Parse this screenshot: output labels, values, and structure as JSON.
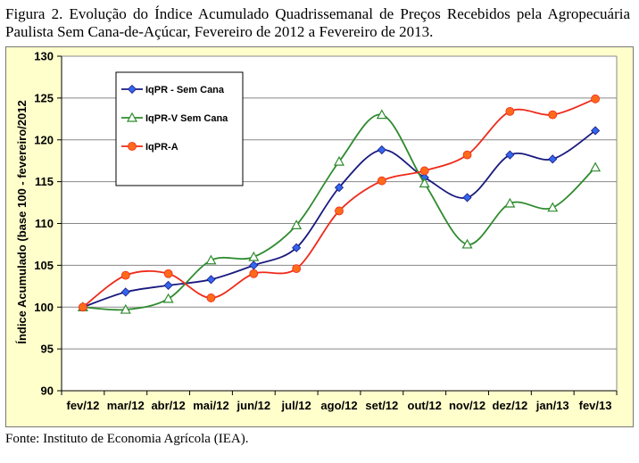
{
  "caption": "Figura 2. Evolução do Índice Acumulado Quadrissemanal de Preços Recebidos pela Agropecuária Paulista Sem Cana-de-Açúcar, Fevereiro de 2012 a Fevereiro de 2013.",
  "source": "Fonte: Instituto de Economia Agrícola (IEA).",
  "chart_data": {
    "type": "line",
    "title": "",
    "xlabel": "",
    "ylabel": "Índice Acumulado (base 100 - fevereiro/2012",
    "ylim": [
      90,
      130
    ],
    "yticks": [
      90,
      95,
      100,
      105,
      110,
      115,
      120,
      125,
      130
    ],
    "grid": "horizontal",
    "legend_position": "top-left",
    "categories": [
      "fev/12",
      "mar/12",
      "abr/12",
      "mai/12",
      "jun/12",
      "jul/12",
      "ago/12",
      "set/12",
      "out/12",
      "nov/12",
      "dez/12",
      "jan/13",
      "fev/13"
    ],
    "series": [
      {
        "name": "IqPR - Sem Cana",
        "color": "#1a1a80",
        "marker": "diamond",
        "marker_color": "#3366ee",
        "values": [
          100.0,
          101.8,
          102.6,
          103.3,
          105.0,
          107.1,
          114.3,
          118.8,
          115.5,
          113.1,
          118.2,
          117.7,
          121.1
        ]
      },
      {
        "name": "IqPR-V Sem Cana",
        "color": "#2e8b2e",
        "marker": "triangle",
        "marker_color": "#ffffff",
        "values": [
          100.0,
          99.7,
          101.0,
          105.6,
          106.0,
          109.8,
          117.4,
          123.0,
          114.8,
          107.5,
          112.4,
          111.9,
          116.7
        ]
      },
      {
        "name": "IqPR-A",
        "color": "#ee2a1a",
        "marker": "circle",
        "marker_color": "#ff6a1a",
        "values": [
          100.0,
          103.8,
          104.0,
          101.1,
          104.0,
          104.6,
          111.5,
          115.1,
          116.3,
          118.2,
          123.4,
          123.0,
          124.9
        ]
      }
    ]
  }
}
